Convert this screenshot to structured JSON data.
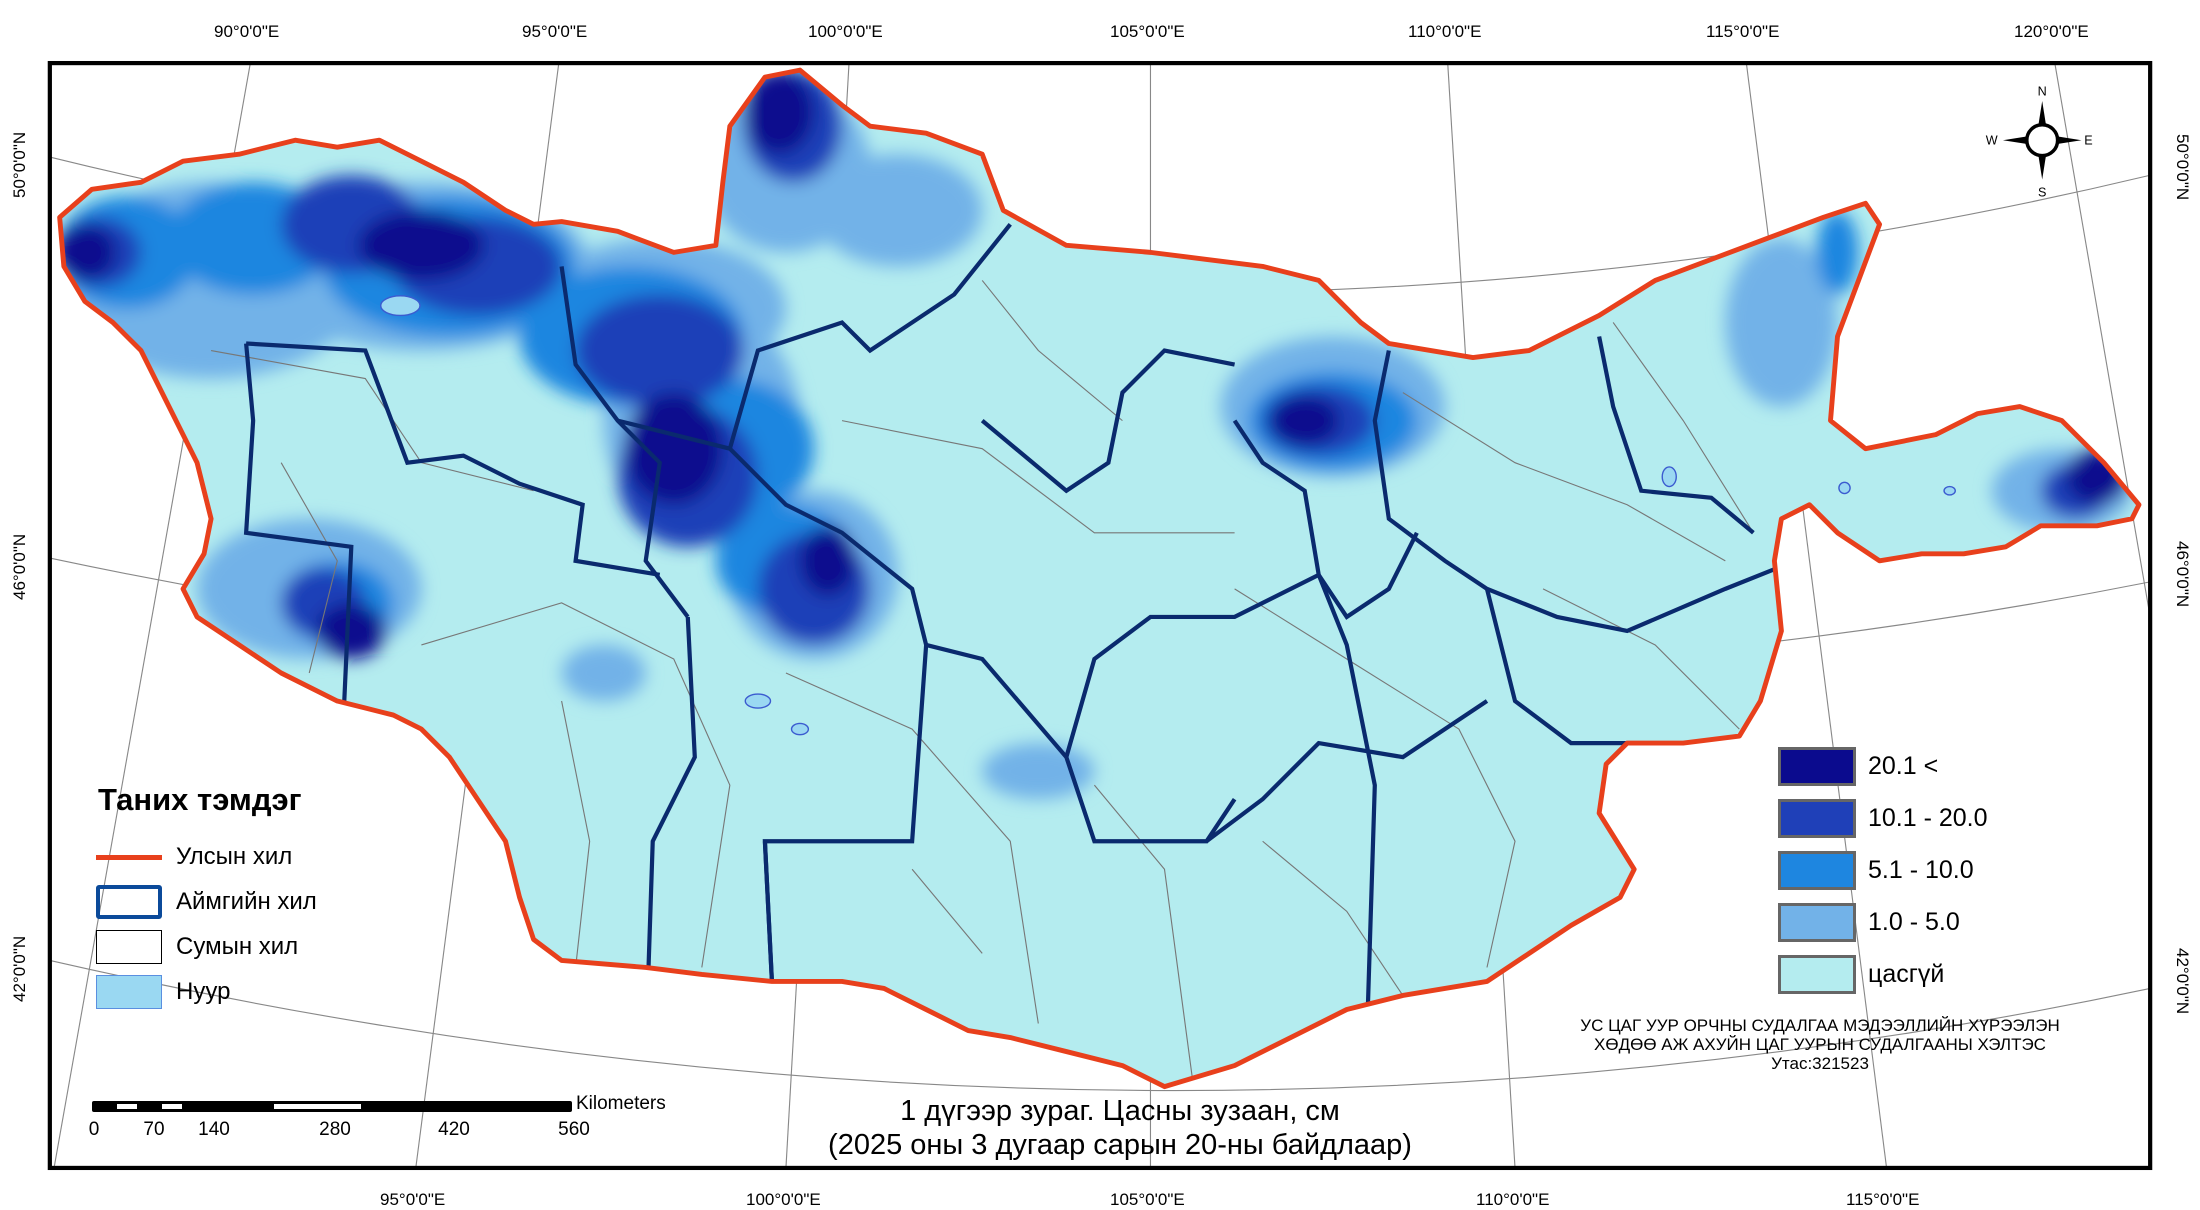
{
  "map": {
    "caption_line1": "1 дүгээр зураг. Цасны зузаан, см",
    "caption_line2": "(2025 оны 3 дугаар сарын 20-ны байдлаар)",
    "top_longitude_labels": [
      "90°0'0\"E",
      "95°0'0\"E",
      "100°0'0\"E",
      "105°0'0\"E",
      "110°0'0\"E",
      "115°0'0\"E",
      "120°0'0\"E"
    ],
    "bottom_longitude_labels": [
      "95°0'0\"E",
      "100°0'0\"E",
      "105°0'0\"E",
      "110°0'0\"E",
      "115°0'0\"E"
    ],
    "left_latitude_labels": [
      "50°0'0\"N",
      "46°0'0\"N",
      "42°0'0\"N"
    ],
    "right_latitude_labels": [
      "50°0'0\"N",
      "46°0'0\"N",
      "42°0'0\"N"
    ],
    "north_arrow": {
      "n": "N",
      "s": "S",
      "e": "E",
      "w": "W"
    }
  },
  "legend": {
    "title": "Таних тэмдэг",
    "items": [
      {
        "label": "Улсын хил",
        "color": "#e8401c"
      },
      {
        "label": "Аймгийн хил",
        "color": "#0b4a9a"
      },
      {
        "label": "Сумын хил",
        "color": "#000000"
      },
      {
        "label": "Нуур",
        "color": "#9ad8f2"
      }
    ]
  },
  "snow_classes": [
    {
      "label": "20.1 <",
      "color": "#0b0b8e"
    },
    {
      "label": "10.1 - 20.0",
      "color": "#1f40b8"
    },
    {
      "label": "5.1 - 10.0",
      "color": "#1e86e0"
    },
    {
      "label": "1.0 - 5.0",
      "color": "#72b2e8"
    },
    {
      "label": "цасгүй",
      "color": "#b4ecef"
    }
  ],
  "scale_bar": {
    "unit": "Kilometers",
    "ticks": [
      "0",
      "70",
      "140",
      "280",
      "420",
      "560"
    ]
  },
  "credit": {
    "line1": "УС ЦАГ УУР ОРЧНЫ СУДАЛГАА МЭДЭЭЛЛИЙН ХҮРЭЭЛЭН",
    "line2": "ХӨДӨӨ АЖ АХУЙН ЦАГ УУРЫН СУДАЛГААНЫ ХЭЛТЭС",
    "line3": "Утас:321523"
  }
}
